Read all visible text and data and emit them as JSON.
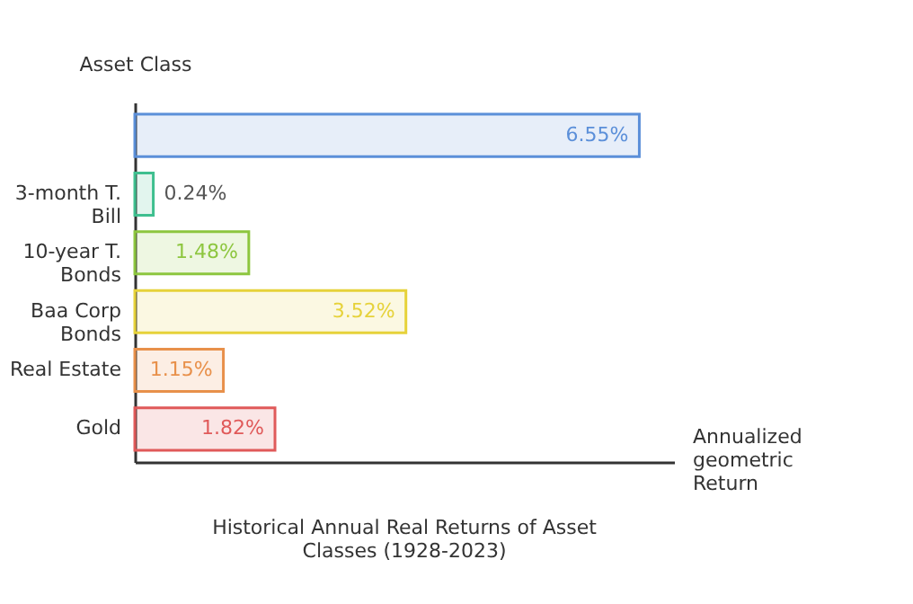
{
  "chart_data": {
    "type": "bar",
    "orientation": "horizontal",
    "title": "Historical Annual Real Returns of Asset Classes (1928-2023)",
    "xlabel": "Annualized geometric Return",
    "ylabel": "Asset Class",
    "categories": [
      null,
      "3-month T. Bill",
      "10-year T. Bonds",
      "Baa Corp Bonds",
      "Real Estate",
      "Gold"
    ],
    "values": [
      6.55,
      0.24,
      1.48,
      3.52,
      1.15,
      1.82
    ],
    "value_labels": [
      "6.55%",
      "0.24%",
      "1.48%",
      "3.52%",
      "1.15%",
      "1.82%"
    ],
    "colors": [
      "#5b8fd9",
      "#3fbf8f",
      "#8dc63f",
      "#e6d23a",
      "#e8904a",
      "#e05a5a"
    ],
    "xlim": [
      0,
      7
    ],
    "tick_labels": "y"
  }
}
